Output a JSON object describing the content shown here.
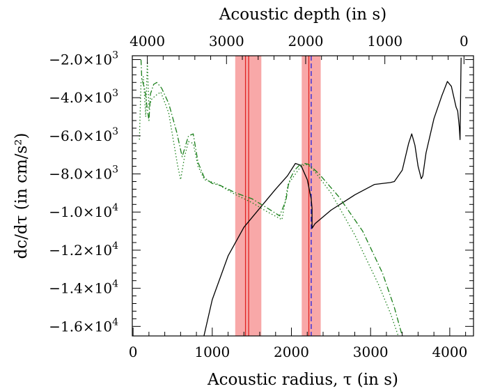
{
  "chart_data": {
    "type": "line",
    "xlabel": "Acoustic radius, τ (in s)",
    "x2label": "Acoustic depth (in s)",
    "ylabel": "dc/dτ (in cm/s²)",
    "xlim": [
      -10,
      4300
    ],
    "ylim": [
      -16500,
      -1800
    ],
    "x_ticks": [
      0,
      1000,
      2000,
      3000,
      4000
    ],
    "x_tick_labels": [
      "0",
      "1000",
      "2000",
      "3000",
      "4000"
    ],
    "x2_ticks": [
      4000,
      3000,
      2000,
      1000,
      0
    ],
    "x2_tick_labels": [
      "4000",
      "3000",
      "2000",
      "1000",
      "0"
    ],
    "y_ticks": [
      -2000,
      -4000,
      -6000,
      -8000,
      -10000,
      -12000,
      -14000,
      -16000
    ],
    "y_tick_labels": [
      [
        "−2.0×10",
        "3"
      ],
      [
        "−4.0×10",
        "3"
      ],
      [
        "−6.0×10",
        "3"
      ],
      [
        "−8.0×10",
        "3"
      ],
      [
        "−1.0×10",
        "4"
      ],
      [
        "−1.2×10",
        "4"
      ],
      [
        "−1.4×10",
        "4"
      ],
      [
        "−1.6×10",
        "4"
      ]
    ],
    "total_acoustic_radius": 4180,
    "shaded_bands": [
      {
        "x0": 1290,
        "x1": 1620,
        "color": "#f8a8a8"
      },
      {
        "x0": 2130,
        "x1": 2370,
        "color": "#f8a8a8"
      }
    ],
    "vertical_lines": [
      {
        "x": 1420,
        "color": "#e02020",
        "style": "solid"
      },
      {
        "x": 1460,
        "color": "#e02020",
        "style": "solid"
      },
      {
        "x": 2220,
        "color": "#e02020",
        "style": "solid"
      },
      {
        "x": 2250,
        "color": "#2020e0",
        "style": "dashed"
      }
    ],
    "series": [
      {
        "style": "solid",
        "color": "#000000",
        "x": [
          895,
          1000,
          1200,
          1400,
          1600,
          1800,
          1950,
          2050,
          2120,
          2200,
          2250,
          2260,
          2260,
          2300,
          2500,
          2800,
          3050,
          3250,
          3300,
          3400,
          3480,
          3520,
          3560,
          3600,
          3640,
          3660,
          3700,
          3800,
          3900,
          3970,
          4020,
          4080,
          4100,
          4120,
          4130,
          4138,
          4143
        ],
        "y": [
          -16500,
          -14600,
          -12300,
          -10800,
          -9800,
          -8800,
          -8100,
          -7450,
          -7550,
          -8300,
          -9300,
          -9800,
          -10850,
          -10600,
          -9900,
          -9100,
          -8550,
          -8450,
          -8400,
          -7800,
          -6400,
          -5900,
          -6500,
          -7600,
          -8250,
          -8100,
          -6900,
          -5100,
          -3900,
          -3150,
          -3400,
          -4500,
          -4700,
          -5500,
          -6200,
          -3500,
          -1900
        ]
      },
      {
        "style": "dashdot",
        "color": "#1a7f1a",
        "x": [
          100,
          110,
          150,
          180,
          200,
          220,
          260,
          300,
          360,
          450,
          550,
          620,
          700,
          760,
          820,
          900,
          1000,
          1100,
          1300,
          1500,
          1700,
          1850,
          1930,
          1960,
          1990,
          2040,
          2100,
          2170,
          2220,
          2350,
          2600,
          2900,
          3150,
          3300,
          3400
        ],
        "y": [
          -2000,
          -3000,
          -3600,
          -4600,
          -5200,
          -3800,
          -3300,
          -3200,
          -3500,
          -4300,
          -5800,
          -7100,
          -6000,
          -5900,
          -7400,
          -8200,
          -8500,
          -8600,
          -9000,
          -9300,
          -9800,
          -10200,
          -9400,
          -8600,
          -8200,
          -7800,
          -7550,
          -7450,
          -7500,
          -8000,
          -9200,
          -11000,
          -13200,
          -15000,
          -16500
        ]
      },
      {
        "style": "dotted",
        "color": "#1a7f1a",
        "x": [
          80,
          100,
          130,
          160,
          180,
          200,
          230,
          280,
          350,
          450,
          560,
          600,
          650,
          700,
          760,
          820,
          900,
          1050,
          1300,
          1500,
          1700,
          1880,
          1930,
          1960,
          2000,
          2060,
          2120,
          2180,
          2230,
          2300,
          2500,
          2800,
          3100,
          3250,
          3350
        ],
        "y": [
          -6200,
          -3200,
          -2900,
          -5000,
          -2100,
          -4600,
          -4100,
          -3900,
          -3700,
          -4800,
          -7500,
          -8300,
          -7100,
          -6300,
          -6400,
          -7600,
          -8300,
          -8500,
          -9100,
          -9500,
          -10000,
          -10400,
          -9200,
          -8500,
          -8300,
          -7950,
          -7600,
          -7500,
          -7600,
          -7900,
          -9000,
          -11200,
          -13800,
          -15300,
          -16500
        ]
      }
    ]
  }
}
